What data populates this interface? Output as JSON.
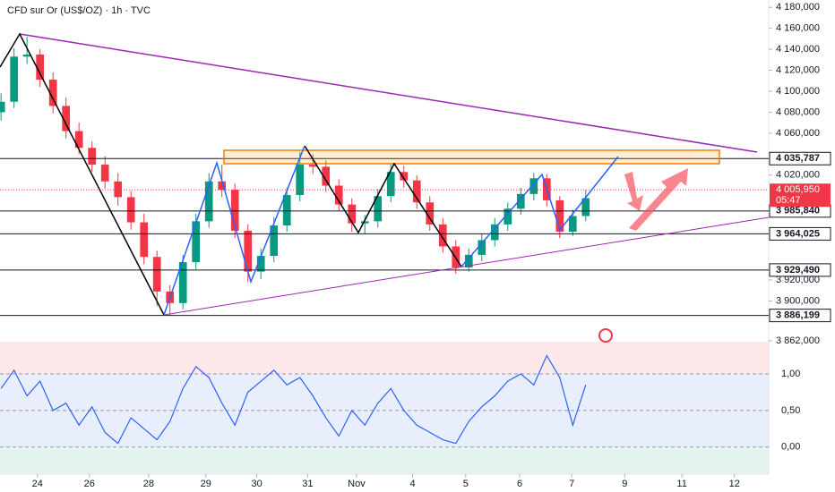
{
  "chart_data": [
    {
      "type": "candlestick",
      "title": "CFD sur Or (US$/OZ) · 1h · TVC",
      "x": [
        -0.7,
        -0.45,
        -0.2,
        0.05,
        0.3,
        0.55,
        0.8,
        1.05,
        1.3,
        1.55,
        1.8,
        2.05,
        2.3,
        2.55,
        2.8,
        3.05,
        3.3,
        3.55,
        3.8,
        4.05,
        4.3,
        4.55,
        4.8,
        5.05,
        5.3,
        5.55,
        5.8,
        6.05,
        6.3,
        6.55,
        6.8,
        7.05,
        7.3,
        7.55,
        7.8,
        8.05,
        8.3,
        8.55,
        8.8,
        9.05,
        9.3,
        9.55,
        9.8,
        10.05,
        10.3,
        10.55
      ],
      "open": [
        4080,
        4090,
        4133,
        4135,
        4111,
        4086,
        4062,
        4046,
        4030,
        4014,
        3999,
        3975,
        3942,
        3909,
        3898,
        3937,
        3976,
        4014,
        4006,
        3967,
        3928,
        3943,
        3972,
        4001,
        4030,
        4028,
        4010,
        3992,
        3974,
        3976,
        4000,
        4023,
        4015,
        3994,
        3973,
        3952,
        3932,
        3944,
        3958,
        3973,
        3988,
        4002,
        4017,
        3996,
        3966,
        3981
      ],
      "high": [
        4098,
        4141,
        4152,
        4140,
        4118,
        4094,
        4070,
        4052,
        4038,
        4022,
        4005,
        3983,
        3948,
        3915,
        3944,
        3983,
        4022,
        4030,
        4012,
        3973,
        3950,
        3980,
        4008,
        4042,
        4040,
        4034,
        4016,
        3998,
        3982,
        4007,
        4030,
        4029,
        4020,
        4000,
        3979,
        3958,
        3950,
        3964,
        3979,
        3994,
        4008,
        4022,
        4021,
        4000,
        3987,
        4006
      ],
      "low": [
        4072,
        4084,
        4126,
        4104,
        4079,
        4055,
        4040,
        4023,
        4007,
        3991,
        3968,
        3935,
        3895,
        3886,
        3892,
        3930,
        3970,
        3999,
        3960,
        3918,
        3921,
        3937,
        3966,
        3995,
        4021,
        4004,
        3986,
        3966,
        3964,
        3970,
        3994,
        4008,
        3988,
        3967,
        3946,
        3926,
        3928,
        3938,
        3952,
        3967,
        3982,
        3996,
        3990,
        3960,
        3962,
        3976
      ],
      "close": [
        4090,
        4133,
        4135,
        4111,
        4086,
        4062,
        4046,
        4030,
        4014,
        3999,
        3975,
        3942,
        3909,
        3898,
        3937,
        3976,
        4014,
        4006,
        3967,
        3928,
        3943,
        3972,
        4001,
        4030,
        4028,
        4010,
        3992,
        3974,
        3976,
        4000,
        4023,
        4015,
        3994,
        3973,
        3952,
        3932,
        3944,
        3958,
        3973,
        3988,
        4002,
        4017,
        3996,
        3966,
        3981,
        3998
      ],
      "up_color": "#089981",
      "down_color": "#f23645",
      "xlim": [
        -0.72,
        14.07
      ],
      "xticks": [
        {
          "value": 0,
          "label": "24"
        },
        {
          "value": 1,
          "label": "26"
        },
        {
          "value": 2.14,
          "label": "28"
        },
        {
          "value": 3.24,
          "label": "29"
        },
        {
          "value": 4.22,
          "label": "30"
        },
        {
          "value": 5.2,
          "label": "31"
        },
        {
          "value": 6.14,
          "label": "Nov"
        },
        {
          "value": 7.22,
          "label": "4"
        },
        {
          "value": 8.24,
          "label": "5"
        },
        {
          "value": 9.28,
          "label": "6"
        },
        {
          "value": 10.28,
          "label": "7"
        },
        {
          "value": 11.3,
          "label": "9"
        },
        {
          "value": 12.4,
          "label": "11"
        },
        {
          "value": 13.41,
          "label": "12"
        }
      ],
      "ylim": [
        3862,
        4187
      ],
      "yticks": [
        {
          "value": 4180,
          "label": "4 180,000"
        },
        {
          "value": 4160,
          "label": "4 160,000"
        },
        {
          "value": 4140,
          "label": "4 140,000"
        },
        {
          "value": 4120,
          "label": "4 120,000"
        },
        {
          "value": 4100,
          "label": "4 100,000"
        },
        {
          "value": 4080,
          "label": "4 080,000"
        },
        {
          "value": 4060,
          "label": "4 060,000"
        },
        {
          "value": 4020,
          "label": "4 020,000"
        },
        {
          "value": 3920,
          "label": "3 920,000"
        },
        {
          "value": 3900,
          "label": "3 900,000"
        },
        {
          "value": 3862,
          "label": "3 862,000"
        }
      ],
      "levels": [
        {
          "value": 4035.787,
          "label": "4 035,787"
        },
        {
          "value": 3985.84,
          "label": "3 985,840"
        },
        {
          "value": 3964.025,
          "label": "3 964,025"
        },
        {
          "value": 3929.49,
          "label": "3 929,490"
        },
        {
          "value": 3886.199,
          "label": "3 886,199"
        }
      ],
      "last_price": {
        "value": 4005.95,
        "label": "4 005,950"
      },
      "countdown": "05:47"
    },
    {
      "type": "line",
      "x": [
        -0.7,
        -0.45,
        -0.2,
        0.05,
        0.3,
        0.55,
        0.8,
        1.05,
        1.3,
        1.55,
        1.8,
        2.05,
        2.3,
        2.55,
        2.8,
        3.05,
        3.3,
        3.55,
        3.8,
        4.05,
        4.3,
        4.55,
        4.8,
        5.05,
        5.3,
        5.55,
        5.8,
        6.05,
        6.3,
        6.55,
        6.8,
        7.05,
        7.3,
        7.55,
        7.8,
        8.05,
        8.3,
        8.55,
        8.8,
        9.05,
        9.3,
        9.55,
        9.8,
        10.05,
        10.3,
        10.55
      ],
      "values": [
        0.8,
        1.05,
        0.7,
        0.9,
        0.5,
        0.6,
        0.3,
        0.55,
        0.2,
        0.05,
        0.4,
        0.25,
        0.1,
        0.35,
        0.8,
        1.1,
        0.95,
        0.6,
        0.3,
        0.75,
        0.9,
        1.05,
        0.85,
        0.95,
        0.7,
        0.4,
        0.15,
        0.5,
        0.3,
        0.6,
        0.8,
        0.5,
        0.3,
        0.2,
        0.1,
        0.05,
        0.35,
        0.55,
        0.7,
        0.9,
        1.0,
        0.85,
        1.25,
        0.95,
        0.3,
        0.85
      ],
      "color": "#2962ff",
      "ylim": [
        -0.37,
        1.44
      ],
      "yticks": [
        {
          "value": 1,
          "label": "1,00"
        },
        {
          "value": 0.5,
          "label": "0,50"
        },
        {
          "value": 0,
          "label": "0,00"
        }
      ]
    }
  ]
}
